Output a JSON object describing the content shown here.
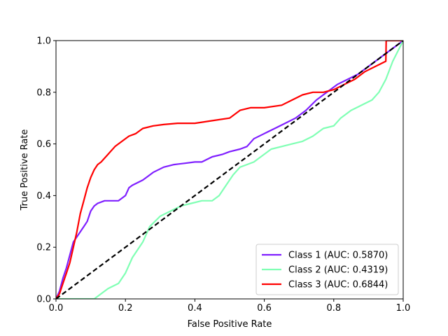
{
  "chart_data": {
    "type": "line",
    "xlabel": "False Positive Rate",
    "ylabel": "True Positive Rate",
    "xlim": [
      0.0,
      1.0
    ],
    "ylim": [
      0.0,
      1.0
    ],
    "grid": false,
    "legend_position": "lower-right",
    "x_ticks": [
      "0.0",
      "0.2",
      "0.4",
      "0.6",
      "0.8",
      "1.0"
    ],
    "y_ticks": [
      "0.0",
      "0.2",
      "0.4",
      "0.6",
      "0.8",
      "1.0"
    ],
    "diagonal": {
      "x": [
        0,
        1
      ],
      "y": [
        0,
        1
      ],
      "color": "#000000",
      "style": "dashed"
    },
    "series": [
      {
        "name": "Class 1 (AUC: 0.5870)",
        "color": "#7f1fff",
        "x": [
          0.0,
          0.01,
          0.02,
          0.03,
          0.04,
          0.05,
          0.06,
          0.07,
          0.08,
          0.09,
          0.1,
          0.11,
          0.12,
          0.14,
          0.16,
          0.18,
          0.2,
          0.21,
          0.22,
          0.25,
          0.28,
          0.31,
          0.34,
          0.37,
          0.4,
          0.42,
          0.45,
          0.48,
          0.5,
          0.53,
          0.55,
          0.57,
          0.6,
          0.63,
          0.66,
          0.69,
          0.72,
          0.75,
          0.78,
          0.81,
          0.84,
          0.87,
          0.9,
          0.92,
          0.95,
          0.97,
          1.0
        ],
        "y": [
          0.0,
          0.03,
          0.08,
          0.12,
          0.17,
          0.22,
          0.24,
          0.26,
          0.28,
          0.3,
          0.34,
          0.36,
          0.37,
          0.38,
          0.38,
          0.38,
          0.4,
          0.43,
          0.44,
          0.46,
          0.49,
          0.51,
          0.52,
          0.525,
          0.53,
          0.53,
          0.55,
          0.56,
          0.57,
          0.58,
          0.59,
          0.62,
          0.64,
          0.66,
          0.68,
          0.7,
          0.73,
          0.77,
          0.8,
          0.83,
          0.85,
          0.87,
          0.9,
          0.92,
          0.95,
          0.97,
          1.0
        ]
      },
      {
        "name": "Class 2 (AUC: 0.4319)",
        "color": "#80ffb4",
        "x": [
          0.0,
          0.05,
          0.11,
          0.13,
          0.15,
          0.18,
          0.2,
          0.22,
          0.25,
          0.27,
          0.3,
          0.33,
          0.36,
          0.39,
          0.42,
          0.45,
          0.47,
          0.49,
          0.51,
          0.53,
          0.55,
          0.57,
          0.59,
          0.62,
          0.65,
          0.68,
          0.71,
          0.74,
          0.77,
          0.8,
          0.82,
          0.85,
          0.88,
          0.91,
          0.93,
          0.95,
          0.97,
          1.0
        ],
        "y": [
          0.0,
          0.0,
          0.0,
          0.02,
          0.04,
          0.06,
          0.1,
          0.16,
          0.22,
          0.28,
          0.32,
          0.34,
          0.36,
          0.37,
          0.38,
          0.38,
          0.4,
          0.44,
          0.48,
          0.51,
          0.52,
          0.53,
          0.55,
          0.58,
          0.59,
          0.6,
          0.61,
          0.63,
          0.66,
          0.67,
          0.7,
          0.73,
          0.75,
          0.77,
          0.8,
          0.85,
          0.92,
          1.0
        ]
      },
      {
        "name": "Class 3 (AUC: 0.6844)",
        "color": "#ff0000",
        "x": [
          0.0,
          0.01,
          0.02,
          0.03,
          0.04,
          0.05,
          0.06,
          0.07,
          0.08,
          0.09,
          0.1,
          0.11,
          0.12,
          0.13,
          0.15,
          0.17,
          0.19,
          0.21,
          0.23,
          0.25,
          0.28,
          0.31,
          0.35,
          0.4,
          0.45,
          0.5,
          0.53,
          0.56,
          0.6,
          0.65,
          0.68,
          0.71,
          0.74,
          0.77,
          0.8,
          0.83,
          0.86,
          0.89,
          0.92,
          0.95,
          0.951,
          0.96,
          1.0
        ],
        "y": [
          0.0,
          0.02,
          0.06,
          0.1,
          0.14,
          0.2,
          0.26,
          0.33,
          0.38,
          0.43,
          0.47,
          0.5,
          0.52,
          0.53,
          0.56,
          0.59,
          0.61,
          0.63,
          0.64,
          0.66,
          0.67,
          0.675,
          0.68,
          0.68,
          0.69,
          0.7,
          0.73,
          0.74,
          0.74,
          0.75,
          0.77,
          0.79,
          0.8,
          0.8,
          0.81,
          0.83,
          0.85,
          0.88,
          0.9,
          0.92,
          1.0,
          1.0,
          1.0
        ]
      }
    ]
  }
}
